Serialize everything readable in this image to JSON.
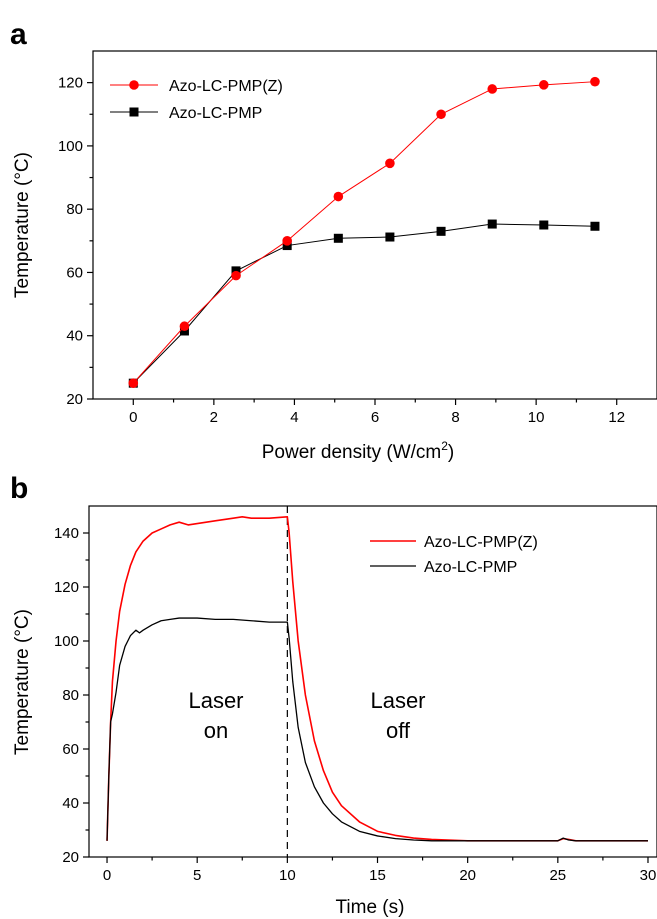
{
  "chart_data": [
    {
      "panel": "a",
      "type": "line",
      "xlabel": "Power density (W/cm",
      "xlabel_sup": "2",
      "xlabel_end": ")",
      "ylabel": "Temperature (°C)",
      "xlim": [
        -1,
        13
      ],
      "ylim": [
        20,
        130
      ],
      "xticks": [
        0,
        2,
        4,
        6,
        8,
        10,
        12
      ],
      "yticks": [
        20,
        40,
        60,
        80,
        100,
        120
      ],
      "grid": false,
      "legend_position": "top-left",
      "series": [
        {
          "name": "Azo-LC-PMP(Z)",
          "color": "#ff0000",
          "marker": "circle",
          "x": [
            0,
            1.27,
            2.55,
            3.82,
            5.09,
            6.37,
            7.64,
            8.91,
            10.19,
            11.46
          ],
          "y": [
            25,
            43,
            59,
            70,
            84,
            94.5,
            110,
            118,
            119.3,
            120.3
          ]
        },
        {
          "name": "Azo-LC-PMP",
          "color": "#000000",
          "marker": "square",
          "x": [
            0,
            1.27,
            2.55,
            3.82,
            5.09,
            6.37,
            7.64,
            8.91,
            10.19,
            11.46
          ],
          "y": [
            25,
            41.5,
            60.5,
            68.5,
            70.8,
            71.2,
            73,
            75.3,
            75,
            74.6
          ]
        }
      ]
    },
    {
      "panel": "b",
      "type": "line",
      "xlabel": "Time (s)",
      "ylabel": "Temperature (°C)",
      "xlim": [
        -1,
        30.5
      ],
      "ylim": [
        20,
        150
      ],
      "xticks": [
        0,
        5,
        10,
        15,
        20,
        25,
        30
      ],
      "yticks": [
        20,
        40,
        60,
        80,
        100,
        120,
        140
      ],
      "grid": false,
      "legend_position": "top-right",
      "annotations": [
        {
          "text_lines": [
            "Laser",
            "on"
          ],
          "x": 6.2,
          "y": 72
        },
        {
          "text_lines": [
            "Laser",
            "off"
          ],
          "x": 15.5,
          "y": 72
        }
      ],
      "vline": {
        "x": 10,
        "style": "dashed"
      },
      "series": [
        {
          "name": "Azo-LC-PMP(Z)",
          "color": "#ff0000",
          "x": [
            0,
            0.1,
            0.2,
            0.3,
            0.5,
            0.7,
            1,
            1.3,
            1.6,
            2,
            2.5,
            3,
            3.5,
            4,
            4.5,
            5,
            6,
            7,
            7.5,
            8,
            9,
            10,
            10.1,
            10.3,
            10.6,
            11,
            11.5,
            12,
            12.5,
            13,
            14,
            15,
            16,
            17,
            18,
            20,
            25,
            25.3,
            25.6,
            26,
            30
          ],
          "y": [
            26,
            50,
            70,
            85,
            100,
            111,
            121,
            128,
            133,
            137,
            140,
            141.5,
            143,
            144,
            143,
            143.5,
            144.5,
            145.5,
            146,
            145.5,
            145.5,
            146,
            140,
            122,
            100,
            80,
            63,
            52,
            44,
            39,
            33,
            29.5,
            28,
            27,
            26.5,
            26,
            26,
            26.8,
            26.5,
            26,
            26
          ]
        },
        {
          "name": "Azo-LC-PMP",
          "color": "#000000",
          "x": [
            0,
            0.1,
            0.2,
            0.3,
            0.5,
            0.7,
            1,
            1.3,
            1.6,
            1.8,
            2,
            2.5,
            3,
            3.5,
            4,
            4.5,
            5,
            6,
            7,
            8,
            9,
            10,
            10.1,
            10.3,
            10.6,
            11,
            11.5,
            12,
            12.5,
            13,
            14,
            15,
            16,
            17,
            18,
            20,
            25,
            25.3,
            25.6,
            26,
            30
          ],
          "y": [
            26,
            50,
            70,
            73,
            81,
            91,
            98,
            102,
            104,
            103,
            104,
            106,
            107.5,
            108,
            108.5,
            108.5,
            108.5,
            108,
            108,
            107.5,
            107,
            107,
            101,
            85,
            68,
            55,
            46,
            40,
            36,
            33,
            29.5,
            27.8,
            26.8,
            26.3,
            26,
            26,
            26,
            27,
            26.3,
            26,
            26
          ]
        }
      ]
    }
  ]
}
